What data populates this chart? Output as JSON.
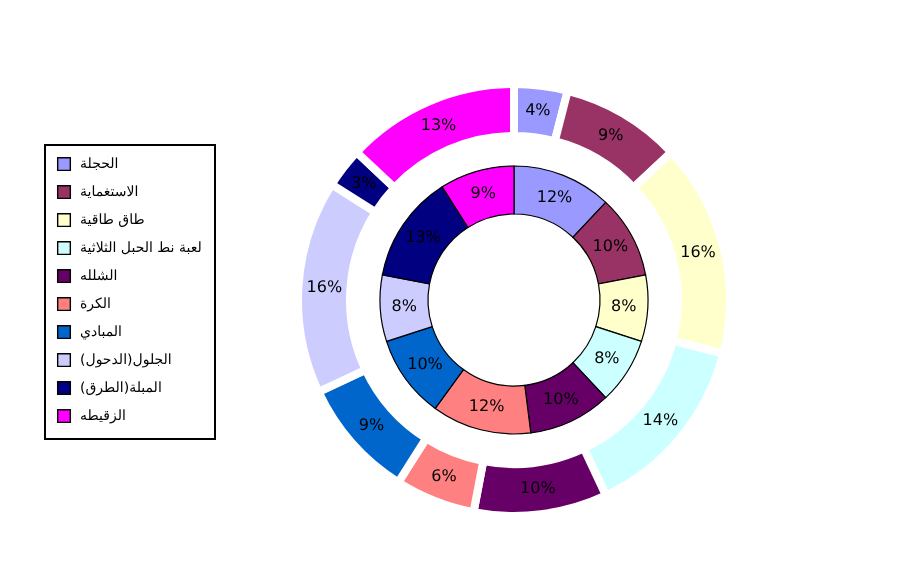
{
  "chart_data": {
    "type": "donut",
    "categories": [
      "الحجلة",
      "الاستغماية",
      "طاق طاقية",
      "لعبة نط الحبل الثلاثية",
      "الشلله",
      "الكرة",
      "المبادي",
      "الجلول(الدحول)",
      "المبلة(الطرق)",
      "الزقيطه"
    ],
    "colors": [
      "#9999ff",
      "#993366",
      "#ffffcc",
      "#ccffff",
      "#660066",
      "#ff8080",
      "#0066cc",
      "#ccccff",
      "#000080",
      "#ff00ff"
    ],
    "series": [
      {
        "values": [
          12,
          10,
          8,
          8,
          10,
          12,
          10,
          8,
          13,
          9
        ],
        "value_labels": [
          "12%",
          "10%",
          "8%",
          "8%",
          "10%",
          "12%",
          "10%",
          "8%",
          "13%",
          "9%"
        ]
      },
      {
        "values": [
          4,
          9,
          16,
          14,
          10,
          6,
          9,
          16,
          3,
          13
        ],
        "value_labels": [
          "4%",
          "9%",
          "16%",
          "14%",
          "10%",
          "6%",
          "9%",
          "16%",
          "3%",
          "13%"
        ]
      }
    ],
    "legend": "left"
  }
}
